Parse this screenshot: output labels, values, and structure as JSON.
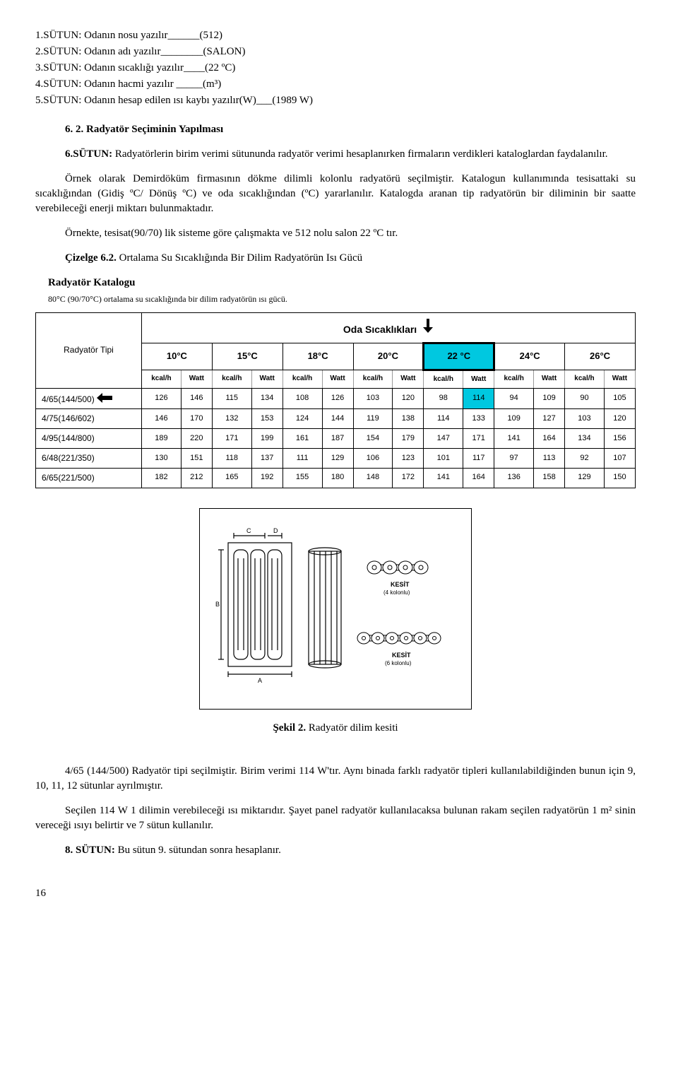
{
  "list": {
    "l1": "1.SÜTUN: Odanın nosu yazılır______(512)",
    "l2": "2.SÜTUN: Odanın adı yazılır________(SALON)",
    "l3": "3.SÜTUN: Odanın sıcaklığı yazılır____(22 ºC)",
    "l4": "4.SÜTUN: Odanın hacmi yazılır _____(m³)",
    "l5": "5.SÜTUN: Odanın hesap edilen ısı kaybı yazılır(W)___(1989 W)"
  },
  "heading62": "6. 2. Radyatör Seçiminin Yapılması",
  "para1a": "6.SÜTUN:",
  "para1b": " Radyatörlerin birim verimi sütununda radyatör verimi hesaplanırken firmaların verdikleri kataloglardan faydalanılır.",
  "para2": "Örnek olarak Demirdöküm firmasının dökme dilimli kolonlu radyatörü seçilmiştir. Katalogun kullanımında tesisattaki su sıcaklığından (Gidiş ºC/ Dönüş ºC) ve oda sıcaklığından (ºC) yararlanılır. Katalogda aranan tip radyatörün bir diliminin bir saatte verebileceği enerji miktarı bulunmaktadır.",
  "para3": "Örnekte, tesisat(90/70) lik sisteme göre çalışmakta ve 512 nolu salon 22 ºC tır.",
  "cizelge62a": "Çizelge 6.2.",
  "cizelge62b": " Ortalama Su Sıcaklığında Bir Dilim Radyatörün Isı Gücü",
  "catalog_title": "Radyatör Katalogu",
  "catalog_sub": "80°C (90/70°C) ortalama su sıcaklığında bir dilim radyatörün ısı gücü.",
  "table": {
    "top_left": "Radyatör Tipi",
    "oda_header": "Oda Sıcaklıkları",
    "temps": [
      "10°C",
      "15°C",
      "18°C",
      "20°C",
      "22 °C",
      "24°C",
      "26°C"
    ],
    "units": [
      "kcal/h",
      "Watt"
    ],
    "rows": [
      {
        "name": "4/65(144/500)",
        "arrow": true,
        "vals": [
          "126",
          "146",
          "115",
          "134",
          "108",
          "126",
          "103",
          "120",
          "98",
          "114",
          "94",
          "109",
          "90",
          "105"
        ],
        "hl": 9
      },
      {
        "name": "4/75(146/602)",
        "arrow": false,
        "vals": [
          "146",
          "170",
          "132",
          "153",
          "124",
          "144",
          "119",
          "138",
          "114",
          "133",
          "109",
          "127",
          "103",
          "120"
        ]
      },
      {
        "name": "4/95(144/800)",
        "arrow": false,
        "vals": [
          "189",
          "220",
          "171",
          "199",
          "161",
          "187",
          "154",
          "179",
          "147",
          "171",
          "141",
          "164",
          "134",
          "156"
        ]
      },
      {
        "name": "6/48(221/350)",
        "arrow": false,
        "vals": [
          "130",
          "151",
          "118",
          "137",
          "111",
          "129",
          "106",
          "123",
          "101",
          "117",
          "97",
          "113",
          "92",
          "107"
        ]
      },
      {
        "name": "6/65(221/500)",
        "arrow": false,
        "vals": [
          "182",
          "212",
          "165",
          "192",
          "155",
          "180",
          "148",
          "172",
          "141",
          "164",
          "136",
          "158",
          "129",
          "150"
        ]
      }
    ]
  },
  "sekil2a": "Şekil 2.",
  "sekil2b": " Radyatör dilim kesiti",
  "kesit4a": "KESİT",
  "kesit4b": "(4 kolonlu)",
  "kesit6a": "KESİT",
  "kesit6b": "(6 kolonlu)",
  "para4": "4/65 (144/500) Radyatör tipi seçilmiştir. Birim verimi 114 W'tır. Aynı binada farklı radyatör tipleri kullanılabildiğinden bunun için 9, 10, 11, 12 sütunlar ayrılmıştır.",
  "para5": "Seçilen 114 W 1 dilimin verebileceği ısı miktarıdır. Şayet panel radyatör kullanılacaksa bulunan rakam seçilen radyatörün 1 m² sinin vereceği ısıyı belirtir ve 7 sütun kullanılır.",
  "para6a": "8. SÜTUN:",
  "para6b": " Bu sütun 9. sütundan sonra hesaplanır.",
  "page": "16"
}
